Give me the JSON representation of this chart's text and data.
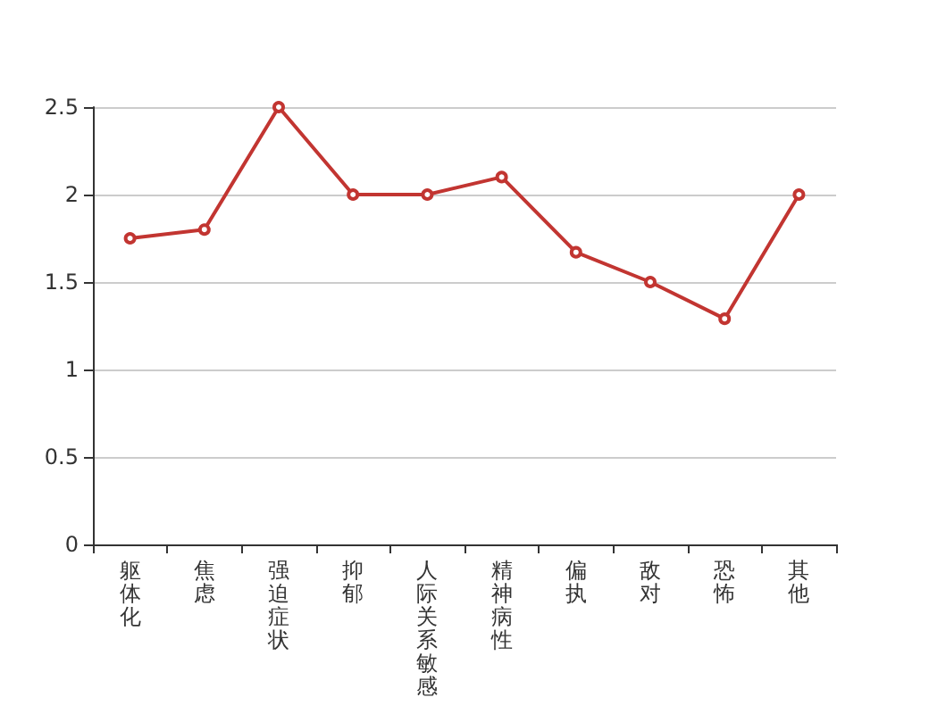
{
  "chart_data": {
    "type": "line",
    "categories": [
      "躯体化",
      "焦虑",
      "强迫症状",
      "抑郁",
      "人际关系敏感",
      "精神病性",
      "偏执",
      "敌对",
      "恐怖",
      "其他"
    ],
    "series": [
      {
        "color": "#c23531",
        "values": [
          1.75,
          1.8,
          2.5,
          2,
          2,
          2.1,
          1.67,
          1.5,
          1.29,
          2
        ]
      }
    ],
    "ylim": [
      0,
      2.5
    ],
    "yticks": [
      0,
      0.5,
      1,
      1.5,
      2,
      2.5
    ],
    "grid": "y",
    "marker": "circle",
    "line_style": "solid"
  }
}
